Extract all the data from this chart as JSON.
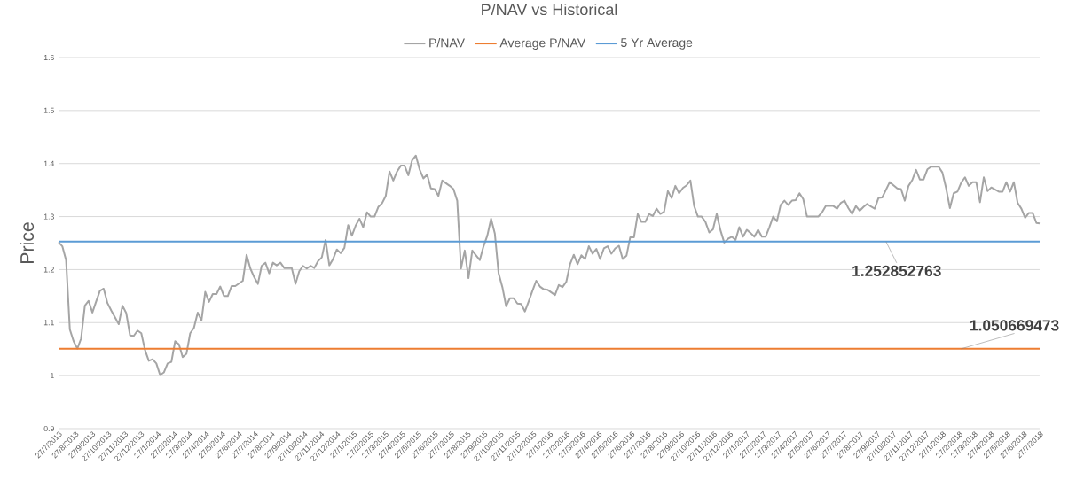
{
  "chart_data": {
    "type": "line",
    "title": "P/NAV vs Historical",
    "ylabel": "Price",
    "xlim": [
      "2013-07-27",
      "2018-07-27"
    ],
    "ylim": [
      0.9,
      1.6
    ],
    "yticks": [
      0.9,
      1,
      1.1,
      1.2,
      1.3,
      1.4,
      1.5,
      1.6
    ],
    "xticks": [
      {
        "value": "2013-07-27",
        "label": "27/7/2013"
      },
      {
        "value": "2013-08-27",
        "label": "27/8/2013"
      },
      {
        "value": "2013-09-27",
        "label": "27/9/2013"
      },
      {
        "value": "2013-10-27",
        "label": "27/10/2013"
      },
      {
        "value": "2013-11-27",
        "label": "27/11/2013"
      },
      {
        "value": "2013-12-27",
        "label": "27/12/2013"
      },
      {
        "value": "2014-01-27",
        "label": "27/1/2014"
      },
      {
        "value": "2014-02-27",
        "label": "27/2/2014"
      },
      {
        "value": "2014-03-27",
        "label": "27/3/2014"
      },
      {
        "value": "2014-04-27",
        "label": "27/4/2014"
      },
      {
        "value": "2014-05-27",
        "label": "27/5/2014"
      },
      {
        "value": "2014-06-27",
        "label": "27/6/2014"
      },
      {
        "value": "2014-07-27",
        "label": "27/7/2014"
      },
      {
        "value": "2014-08-27",
        "label": "27/8/2014"
      },
      {
        "value": "2014-09-27",
        "label": "27/9/2014"
      },
      {
        "value": "2014-10-27",
        "label": "27/10/2014"
      },
      {
        "value": "2014-11-27",
        "label": "27/11/2014"
      },
      {
        "value": "2014-12-27",
        "label": "27/12/2014"
      },
      {
        "value": "2015-01-27",
        "label": "27/1/2015"
      },
      {
        "value": "2015-02-27",
        "label": "27/2/2015"
      },
      {
        "value": "2015-03-27",
        "label": "27/3/2015"
      },
      {
        "value": "2015-04-27",
        "label": "27/4/2015"
      },
      {
        "value": "2015-05-27",
        "label": "27/5/2015"
      },
      {
        "value": "2015-06-27",
        "label": "27/6/2015"
      },
      {
        "value": "2015-07-27",
        "label": "27/7/2015"
      },
      {
        "value": "2015-08-27",
        "label": "27/8/2015"
      },
      {
        "value": "2015-09-27",
        "label": "27/9/2015"
      },
      {
        "value": "2015-10-27",
        "label": "27/10/2015"
      },
      {
        "value": "2015-11-27",
        "label": "27/11/2015"
      },
      {
        "value": "2015-12-27",
        "label": "27/12/2015"
      },
      {
        "value": "2016-01-27",
        "label": "27/1/2016"
      },
      {
        "value": "2016-02-27",
        "label": "27/2/2016"
      },
      {
        "value": "2016-03-27",
        "label": "27/3/2016"
      },
      {
        "value": "2016-04-27",
        "label": "27/4/2016"
      },
      {
        "value": "2016-05-27",
        "label": "27/5/2016"
      },
      {
        "value": "2016-06-27",
        "label": "27/6/2016"
      },
      {
        "value": "2016-07-27",
        "label": "27/7/2016"
      },
      {
        "value": "2016-08-27",
        "label": "27/8/2016"
      },
      {
        "value": "2016-09-27",
        "label": "27/9/2016"
      },
      {
        "value": "2016-10-27",
        "label": "27/10/2016"
      },
      {
        "value": "2016-11-27",
        "label": "27/11/2016"
      },
      {
        "value": "2016-12-27",
        "label": "27/12/2016"
      },
      {
        "value": "2017-01-27",
        "label": "27/1/2017"
      },
      {
        "value": "2017-02-27",
        "label": "27/2/2017"
      },
      {
        "value": "2017-03-27",
        "label": "27/3/2017"
      },
      {
        "value": "2017-04-27",
        "label": "27/4/2017"
      },
      {
        "value": "2017-05-27",
        "label": "27/5/2017"
      },
      {
        "value": "2017-06-27",
        "label": "27/6/2017"
      },
      {
        "value": "2017-07-27",
        "label": "27/7/2017"
      },
      {
        "value": "2017-08-27",
        "label": "27/8/2017"
      },
      {
        "value": "2017-09-27",
        "label": "27/9/2017"
      },
      {
        "value": "2017-10-27",
        "label": "27/10/2017"
      },
      {
        "value": "2017-11-27",
        "label": "27/11/2017"
      },
      {
        "value": "2017-12-27",
        "label": "27/12/2017"
      },
      {
        "value": "2018-01-27",
        "label": "27/1/2018"
      },
      {
        "value": "2018-02-27",
        "label": "27/2/2018"
      },
      {
        "value": "2018-03-27",
        "label": "27/3/2018"
      },
      {
        "value": "2018-04-27",
        "label": "27/4/2018"
      },
      {
        "value": "2018-05-27",
        "label": "27/5/2018"
      },
      {
        "value": "2018-06-27",
        "label": "27/6/2018"
      },
      {
        "value": "2018-07-27",
        "label": "27/7/2018"
      }
    ],
    "grid": "y",
    "legend": "top",
    "marker": "none",
    "line_style": "solid",
    "series": [
      {
        "name": "P/NAV",
        "color": "#a5a5a5",
        "x": [
          "2013-07-27",
          "2013-08-03",
          "2013-08-10",
          "2013-08-17",
          "2013-08-24",
          "2013-08-31",
          "2013-09-07",
          "2013-09-14",
          "2013-09-21",
          "2013-09-28",
          "2013-10-05",
          "2013-10-12",
          "2013-10-19",
          "2013-10-26",
          "2013-11-02",
          "2013-11-16",
          "2013-11-23",
          "2013-11-30",
          "2013-12-07",
          "2013-12-14",
          "2013-12-21",
          "2013-12-28",
          "2014-01-04",
          "2014-01-11",
          "2014-01-18",
          "2014-01-25",
          "2014-02-01",
          "2014-02-08",
          "2014-02-15",
          "2014-02-22",
          "2014-03-01",
          "2014-03-08",
          "2014-03-15",
          "2014-03-22",
          "2014-03-29",
          "2014-04-05",
          "2014-04-12",
          "2014-04-19",
          "2014-04-26",
          "2014-05-03",
          "2014-05-10",
          "2014-05-17",
          "2014-05-24",
          "2014-05-31",
          "2014-06-07",
          "2014-06-14",
          "2014-06-21",
          "2014-06-28",
          "2014-07-05",
          "2014-07-12",
          "2014-07-19",
          "2014-07-26",
          "2014-08-02",
          "2014-08-09",
          "2014-08-16",
          "2014-08-23",
          "2014-08-30",
          "2014-09-06",
          "2014-09-13",
          "2014-09-20",
          "2014-10-04",
          "2014-10-11",
          "2014-10-18",
          "2014-10-25",
          "2014-11-01",
          "2014-11-08",
          "2014-11-15",
          "2014-11-22",
          "2014-11-29",
          "2014-12-06",
          "2014-12-13",
          "2014-12-20",
          "2014-12-27",
          "2015-01-03",
          "2015-01-10",
          "2015-01-17",
          "2015-01-24",
          "2015-01-31",
          "2015-02-07",
          "2015-02-14",
          "2015-02-21",
          "2015-02-28",
          "2015-03-07",
          "2015-03-14",
          "2015-03-21",
          "2015-03-28",
          "2015-04-04",
          "2015-04-11",
          "2015-04-18",
          "2015-04-25",
          "2015-05-02",
          "2015-05-09",
          "2015-05-16",
          "2015-05-23",
          "2015-05-30",
          "2015-06-06",
          "2015-06-13",
          "2015-06-20",
          "2015-06-27",
          "2015-07-04",
          "2015-07-11",
          "2015-07-18",
          "2015-07-25",
          "2015-08-01",
          "2015-08-08",
          "2015-08-15",
          "2015-08-22",
          "2015-08-29",
          "2015-09-05",
          "2015-09-12",
          "2015-09-19",
          "2015-09-26",
          "2015-10-03",
          "2015-10-10",
          "2015-10-17",
          "2015-10-24",
          "2015-10-31",
          "2015-11-07",
          "2015-11-14",
          "2015-11-21",
          "2015-11-28",
          "2015-12-05",
          "2015-12-12",
          "2015-12-19",
          "2015-12-26",
          "2016-01-02",
          "2016-01-09",
          "2016-01-16",
          "2016-01-23",
          "2016-01-30",
          "2016-02-06",
          "2016-02-13",
          "2016-02-20",
          "2016-02-27",
          "2016-03-05",
          "2016-03-12",
          "2016-03-19",
          "2016-03-26",
          "2016-04-02",
          "2016-04-09",
          "2016-04-16",
          "2016-04-23",
          "2016-04-30",
          "2016-05-07",
          "2016-05-14",
          "2016-05-21",
          "2016-05-28",
          "2016-06-04",
          "2016-06-11",
          "2016-06-18",
          "2016-06-25",
          "2016-07-02",
          "2016-07-09",
          "2016-07-16",
          "2016-07-23",
          "2016-07-30",
          "2016-08-06",
          "2016-08-13",
          "2016-08-20",
          "2016-08-27",
          "2016-09-03",
          "2016-09-10",
          "2016-09-17",
          "2016-09-24",
          "2016-10-01",
          "2016-10-08",
          "2016-10-15",
          "2016-10-22",
          "2016-10-29",
          "2016-11-05",
          "2016-11-12",
          "2016-11-19",
          "2016-11-26",
          "2016-12-03",
          "2016-12-10",
          "2016-12-17",
          "2016-12-24",
          "2016-12-31",
          "2017-01-07",
          "2017-01-14",
          "2017-01-21",
          "2017-01-28",
          "2017-02-04",
          "2017-02-11",
          "2017-02-18",
          "2017-02-25",
          "2017-03-04",
          "2017-03-11",
          "2017-03-18",
          "2017-03-25",
          "2017-04-01",
          "2017-04-08",
          "2017-04-15",
          "2017-04-22",
          "2017-04-29",
          "2017-05-06",
          "2017-05-13",
          "2017-05-20",
          "2017-06-10",
          "2017-06-17",
          "2017-06-24",
          "2017-07-08",
          "2017-07-15",
          "2017-07-22",
          "2017-07-29",
          "2017-08-05",
          "2017-08-12",
          "2017-08-19",
          "2017-08-26",
          "2017-09-02",
          "2017-09-09",
          "2017-09-16",
          "2017-09-23",
          "2017-09-30",
          "2017-10-07",
          "2017-10-21",
          "2017-10-28",
          "2017-11-04",
          "2017-11-11",
          "2017-11-18",
          "2017-11-25",
          "2017-12-02",
          "2017-12-09",
          "2017-12-16",
          "2017-12-23",
          "2017-12-30",
          "2018-01-06",
          "2018-01-20",
          "2018-01-27",
          "2018-02-03",
          "2018-02-10",
          "2018-02-17",
          "2018-02-24",
          "2018-03-03",
          "2018-03-10",
          "2018-03-17",
          "2018-03-24",
          "2018-03-31",
          "2018-04-07",
          "2018-04-14",
          "2018-04-21",
          "2018-04-28",
          "2018-05-12",
          "2018-05-19",
          "2018-05-26",
          "2018-06-02",
          "2018-06-09",
          "2018-06-16",
          "2018-06-23",
          "2018-06-30",
          "2018-07-07",
          "2018-07-14",
          "2018-07-21",
          "2018-07-27"
        ],
        "values": [
          1.252,
          1.244,
          1.218,
          1.087,
          1.065,
          1.051,
          1.07,
          1.132,
          1.141,
          1.119,
          1.14,
          1.16,
          1.164,
          1.137,
          1.123,
          1.097,
          1.132,
          1.118,
          1.076,
          1.075,
          1.085,
          1.08,
          1.048,
          1.028,
          1.031,
          1.023,
          1.001,
          1.006,
          1.023,
          1.026,
          1.065,
          1.059,
          1.035,
          1.041,
          1.08,
          1.09,
          1.119,
          1.104,
          1.158,
          1.139,
          1.154,
          1.154,
          1.168,
          1.15,
          1.15,
          1.169,
          1.169,
          1.174,
          1.179,
          1.228,
          1.202,
          1.186,
          1.173,
          1.207,
          1.213,
          1.193,
          1.213,
          1.208,
          1.213,
          1.203,
          1.203,
          1.173,
          1.197,
          1.207,
          1.202,
          1.207,
          1.203,
          1.216,
          1.223,
          1.256,
          1.208,
          1.22,
          1.238,
          1.231,
          1.241,
          1.284,
          1.264,
          1.283,
          1.296,
          1.28,
          1.308,
          1.3,
          1.3,
          1.318,
          1.325,
          1.339,
          1.385,
          1.368,
          1.385,
          1.396,
          1.396,
          1.378,
          1.406,
          1.415,
          1.389,
          1.372,
          1.379,
          1.353,
          1.352,
          1.339,
          1.368,
          1.363,
          1.358,
          1.352,
          1.33,
          1.202,
          1.236,
          1.184,
          1.236,
          1.227,
          1.218,
          1.244,
          1.264,
          1.296,
          1.268,
          1.193,
          1.167,
          1.131,
          1.146,
          1.146,
          1.136,
          1.135,
          1.121,
          1.14,
          1.16,
          1.179,
          1.168,
          1.163,
          1.162,
          1.157,
          1.152,
          1.171,
          1.167,
          1.177,
          1.21,
          1.228,
          1.21,
          1.227,
          1.22,
          1.244,
          1.23,
          1.239,
          1.22,
          1.24,
          1.244,
          1.23,
          1.24,
          1.245,
          1.22,
          1.226,
          1.261,
          1.261,
          1.305,
          1.29,
          1.29,
          1.305,
          1.301,
          1.315,
          1.305,
          1.309,
          1.348,
          1.335,
          1.358,
          1.344,
          1.354,
          1.359,
          1.368,
          1.32,
          1.3,
          1.3,
          1.29,
          1.27,
          1.276,
          1.305,
          1.274,
          1.251,
          1.258,
          1.262,
          1.256,
          1.28,
          1.262,
          1.275,
          1.269,
          1.262,
          1.275,
          1.262,
          1.262,
          1.28,
          1.3,
          1.291,
          1.322,
          1.33,
          1.322,
          1.33,
          1.331,
          1.344,
          1.333,
          1.3,
          1.3,
          1.308,
          1.32,
          1.32,
          1.315,
          1.326,
          1.33,
          1.316,
          1.305,
          1.32,
          1.311,
          1.318,
          1.324,
          1.319,
          1.315,
          1.335,
          1.336,
          1.365,
          1.359,
          1.353,
          1.352,
          1.33,
          1.358,
          1.369,
          1.388,
          1.37,
          1.37,
          1.389,
          1.394,
          1.394,
          1.383,
          1.353,
          1.316,
          1.344,
          1.347,
          1.364,
          1.374,
          1.358,
          1.365,
          1.365,
          1.327,
          1.374,
          1.348,
          1.355,
          1.347,
          1.347,
          1.365,
          1.347,
          1.365,
          1.326,
          1.315,
          1.298,
          1.307,
          1.307,
          1.288,
          1.287
        ]
      },
      {
        "name": "Average P/NAV",
        "color": "#ed7d31",
        "x": [
          "2013-07-27",
          "2018-07-27"
        ],
        "values": [
          1.050669473,
          1.050669473
        ]
      },
      {
        "name": "5 Yr Average",
        "color": "#5b9bd5",
        "x": [
          "2013-07-27",
          "2018-07-27"
        ],
        "values": [
          1.252852763,
          1.252852763
        ]
      }
    ],
    "annotations": [
      {
        "text": "1.252852763",
        "x": "2017-10-14",
        "y": 1.252852763
      },
      {
        "text": "1.050669473",
        "x": "2018-03-03",
        "y": 1.050669473
      }
    ]
  }
}
